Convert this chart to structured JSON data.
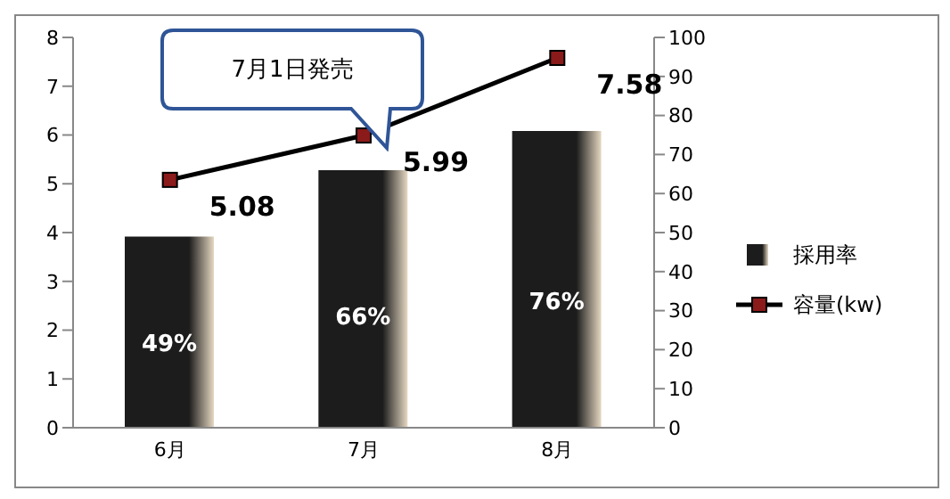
{
  "chart_data": {
    "type": "bar",
    "categories": [
      "6月",
      "7月",
      "8月"
    ],
    "series": [
      {
        "name": "採用率",
        "axis": "y2",
        "color": "#1c1c1c",
        "values": [
          49,
          66,
          76
        ],
        "value_labels": [
          "49%",
          "66%",
          "76%"
        ]
      },
      {
        "name": "容量(kw)",
        "type": "line",
        "color": "#000000",
        "values": [
          5.08,
          5.99,
          7.58
        ],
        "value_labels": [
          "5.08",
          "5.99",
          "7.58"
        ]
      }
    ],
    "ylim": [
      0,
      8
    ],
    "yticks": [
      0,
      1,
      2,
      3,
      4,
      5,
      6,
      7,
      8
    ],
    "y2lim": [
      0,
      100
    ],
    "y2ticks": [
      0,
      10,
      20,
      30,
      40,
      50,
      60,
      70,
      80,
      90,
      100
    ],
    "annotations": [
      "7月1日発売"
    ],
    "marker": "square",
    "legend": "right"
  }
}
